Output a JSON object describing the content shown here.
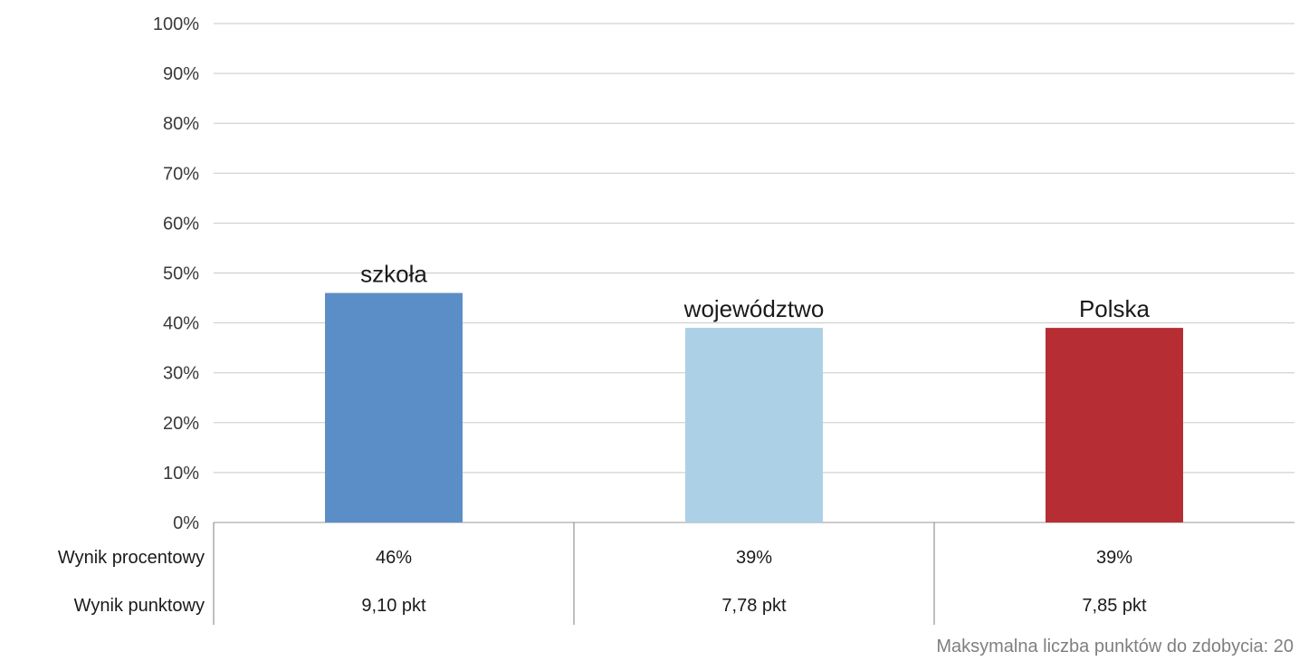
{
  "chart_data": {
    "type": "bar",
    "categories": [
      "szkoła",
      "województwo",
      "Polska"
    ],
    "values": [
      46,
      39,
      39
    ],
    "colors": [
      "#5b8ec7",
      "#acd0e6",
      "#b72d34"
    ],
    "ylim": [
      0,
      100
    ],
    "y_ticks": [
      "0%",
      "10%",
      "20%",
      "30%",
      "40%",
      "50%",
      "60%",
      "70%",
      "80%",
      "90%",
      "100%"
    ],
    "grid": true,
    "legend": "none",
    "table": {
      "rows": [
        {
          "label": "Wynik procentowy",
          "values": [
            "46%",
            "39%",
            "39%"
          ]
        },
        {
          "label": "Wynik punktowy",
          "values": [
            "9,10 pkt",
            "7,78 pkt",
            "7,85 pkt"
          ]
        }
      ]
    }
  },
  "footnote": "Maksymalna liczba punktów do zdobycia: 20"
}
